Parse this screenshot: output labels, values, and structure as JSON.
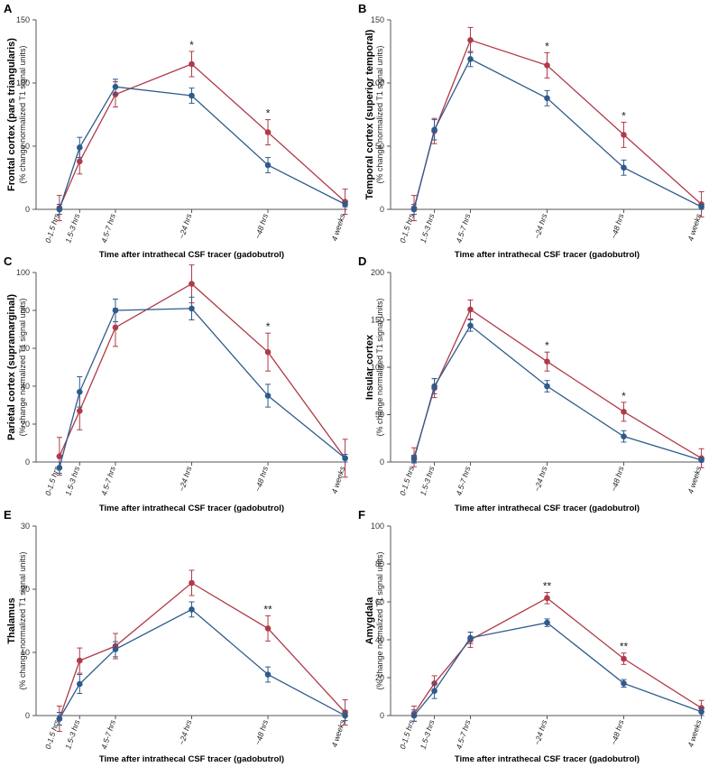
{
  "colors": {
    "series_1": "#2e5b8c",
    "series_2": "#b03a48"
  },
  "chart_data": [
    {
      "type": "line",
      "panel": "A",
      "ylabel": "Frontal cortex (pars triangularis)",
      "ylabel_sub": "(% change normalized T1 signal units)",
      "xlabel": "Time after intrathecal CSF tracer (gadobutrol)",
      "categories": [
        "0-1.5 hrs",
        "1.5-3 hrs",
        "4.5-7 hrs",
        "~24 hrs",
        "~48 hrs",
        "4 weeks"
      ],
      "ylim": [
        0,
        150
      ],
      "yticks": [
        0,
        50,
        100,
        150
      ],
      "series": [
        {
          "values": [
            0,
            49,
            97,
            90,
            35,
            4
          ],
          "errors": [
            4,
            8,
            6,
            6,
            6,
            2
          ]
        },
        {
          "values": [
            1,
            38,
            91,
            115,
            61,
            6
          ],
          "errors": [
            10,
            10,
            10,
            10,
            10,
            10
          ]
        }
      ],
      "significance": [
        {
          "category": "~24 hrs",
          "label": "*"
        },
        {
          "category": "~48 hrs",
          "label": "*"
        }
      ]
    },
    {
      "type": "line",
      "panel": "B",
      "ylabel": "Temporal cortex (superior temporal)",
      "ylabel_sub": "(% change normalized T1 signal units)",
      "xlabel": "Time after intrathecal CSF tracer (gadobutrol)",
      "categories": [
        "0-1.5 hrs",
        "1.5-3 hrs",
        "4.5-7 hrs",
        "~24 hrs",
        "~48 hrs",
        "4 weeks"
      ],
      "ylim": [
        0,
        150
      ],
      "yticks": [
        0,
        50,
        100,
        150
      ],
      "series": [
        {
          "values": [
            0,
            63,
            119,
            88,
            33,
            2
          ],
          "errors": [
            4,
            8,
            6,
            6,
            6,
            2
          ]
        },
        {
          "values": [
            1,
            62,
            134,
            114,
            59,
            4
          ],
          "errors": [
            10,
            10,
            10,
            10,
            10,
            10
          ]
        }
      ],
      "significance": [
        {
          "category": "~24 hrs",
          "label": "*"
        },
        {
          "category": "~48 hrs",
          "label": "*"
        }
      ]
    },
    {
      "type": "line",
      "panel": "C",
      "ylabel": "Parietal cortex (supramarginal)",
      "ylabel_sub": "(% change normalized T1 signal units)",
      "xlabel": "Time after intrathecal CSF tracer (gadobutrol)",
      "categories": [
        "0-1.5 hrs",
        "1.5-3 hrs",
        "4.5-7 hrs",
        "~24 hrs",
        "~48 hrs",
        "4 weeks"
      ],
      "ylim": [
        0,
        100
      ],
      "yticks": [
        0,
        20,
        40,
        60,
        80,
        100
      ],
      "series": [
        {
          "values": [
            -3,
            37,
            80,
            81,
            35,
            2
          ],
          "errors": [
            3,
            8,
            6,
            6,
            6,
            2
          ]
        },
        {
          "values": [
            3,
            27,
            71,
            94,
            58,
            2
          ],
          "errors": [
            10,
            10,
            10,
            10,
            10,
            10
          ]
        }
      ],
      "significance": [
        {
          "category": "~48 hrs",
          "label": "*"
        }
      ]
    },
    {
      "type": "line",
      "panel": "D",
      "ylabel": "Insular cortex",
      "ylabel_sub": "(% change normalized T1 signal units)",
      "xlabel": "Time after intrathecal CSF tracer (gadobutrol)",
      "categories": [
        "0-1.5 hrs",
        "1.5-3 hrs",
        "4.5-7 hrs",
        "~24 hrs",
        "~48 hrs",
        "4 weeks"
      ],
      "ylim": [
        0,
        200
      ],
      "yticks": [
        0,
        50,
        100,
        150,
        200
      ],
      "series": [
        {
          "values": [
            3,
            80,
            144,
            80,
            27,
            2
          ],
          "errors": [
            4,
            8,
            6,
            6,
            6,
            2
          ]
        },
        {
          "values": [
            5,
            78,
            161,
            106,
            53,
            4
          ],
          "errors": [
            10,
            10,
            10,
            10,
            10,
            10
          ]
        }
      ],
      "significance": [
        {
          "category": "~24 hrs",
          "label": "*"
        },
        {
          "category": "~48 hrs",
          "label": "*"
        }
      ]
    },
    {
      "type": "line",
      "panel": "E",
      "ylabel": "Thalamus",
      "ylabel_sub": "(% change normalized T1 signal units)",
      "xlabel": "Time after intrathecal CSF tracer (gadobutrol)",
      "categories": [
        "0-1.5 hrs",
        "1.5-3 hrs",
        "4.5-7 hrs",
        "~24 hrs",
        "~48 hrs",
        "4 weeks"
      ],
      "ylim": [
        0,
        30
      ],
      "yticks": [
        0,
        10,
        20,
        30
      ],
      "series": [
        {
          "values": [
            -0.5,
            5,
            10.5,
            16.8,
            6.5,
            0
          ],
          "errors": [
            1,
            1.5,
            1.2,
            1.2,
            1.2,
            0.8
          ]
        },
        {
          "values": [
            -0.5,
            8.7,
            11,
            21,
            13.8,
            0.5
          ],
          "errors": [
            2,
            2,
            2,
            2,
            2,
            2
          ]
        }
      ],
      "significance": [
        {
          "category": "~48 hrs",
          "label": "**"
        }
      ]
    },
    {
      "type": "line",
      "panel": "F",
      "ylabel": "Amygdala",
      "ylabel_sub": "(% change normalized T1 signal units)",
      "xlabel": "Time after intrathecal CSF tracer (gadobutrol)",
      "categories": [
        "0-1.5 hrs",
        "1.5-3 hrs",
        "4.5-7 hrs",
        "~24 hrs",
        "~48 hrs",
        "4 weeks"
      ],
      "ylim": [
        0,
        100
      ],
      "yticks": [
        0,
        20,
        40,
        60,
        80,
        100
      ],
      "series": [
        {
          "values": [
            0,
            13,
            41,
            49,
            17,
            2
          ],
          "errors": [
            3,
            4,
            3,
            2,
            2,
            2
          ]
        },
        {
          "values": [
            1,
            17,
            40,
            62,
            30,
            4
          ],
          "errors": [
            4,
            4,
            4,
            3,
            3,
            4
          ]
        }
      ],
      "significance": [
        {
          "category": "~24 hrs",
          "label": "**"
        },
        {
          "category": "~48 hrs",
          "label": "**"
        }
      ]
    }
  ]
}
